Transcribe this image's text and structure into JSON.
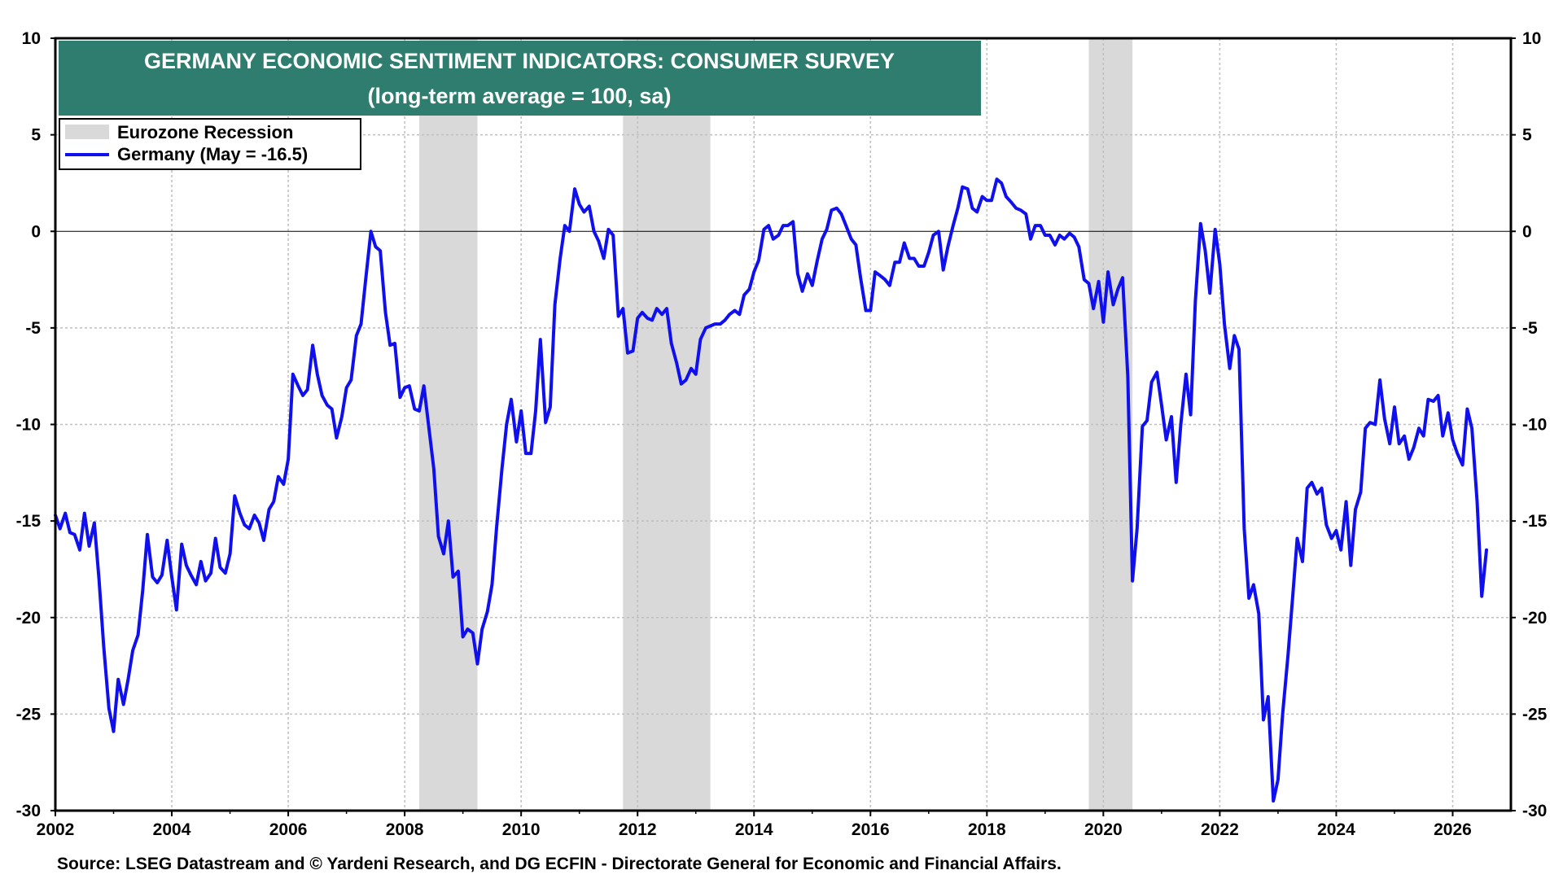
{
  "chart_data": {
    "type": "line",
    "title": "GERMANY ECONOMIC SENTIMENT INDICATORS: CONSUMER SURVEY",
    "subtitle": "(long-term average = 100, sa)",
    "ylim": [
      -30,
      10
    ],
    "xlim": [
      2002,
      2027
    ],
    "yticks": [
      10,
      5,
      0,
      -5,
      -10,
      -15,
      -20,
      -25,
      -30
    ],
    "xticks": [
      2002,
      2004,
      2006,
      2008,
      2010,
      2012,
      2014,
      2016,
      2018,
      2020,
      2022,
      2024,
      2026
    ],
    "grid": true,
    "zero_line": true,
    "legend_position": "top-left",
    "recession_label": "Eurozone Recession",
    "recessions": [
      [
        2008.25,
        2009.25
      ],
      [
        2011.75,
        2013.25
      ],
      [
        2019.75,
        2020.5
      ]
    ],
    "series": [
      {
        "name": "Germany (May = -16.5)",
        "color": "#1010ee",
        "points": [
          [
            2002.0,
            -14.7
          ],
          [
            2002.08,
            -15.4
          ],
          [
            2002.17,
            -14.6
          ],
          [
            2002.25,
            -15.6
          ],
          [
            2002.33,
            -15.7
          ],
          [
            2002.42,
            -16.5
          ],
          [
            2002.5,
            -14.6
          ],
          [
            2002.58,
            -16.3
          ],
          [
            2002.67,
            -15.1
          ],
          [
            2002.75,
            -18.0
          ],
          [
            2002.83,
            -21.5
          ],
          [
            2002.92,
            -24.7
          ],
          [
            2003.0,
            -25.9
          ],
          [
            2003.08,
            -23.2
          ],
          [
            2003.17,
            -24.5
          ],
          [
            2003.25,
            -23.2
          ],
          [
            2003.33,
            -21.7
          ],
          [
            2003.42,
            -20.9
          ],
          [
            2003.5,
            -18.6
          ],
          [
            2003.58,
            -15.7
          ],
          [
            2003.67,
            -17.9
          ],
          [
            2003.75,
            -18.2
          ],
          [
            2003.83,
            -17.8
          ],
          [
            2003.92,
            -16.0
          ],
          [
            2004.0,
            -17.9
          ],
          [
            2004.08,
            -19.6
          ],
          [
            2004.17,
            -16.2
          ],
          [
            2004.25,
            -17.3
          ],
          [
            2004.33,
            -17.8
          ],
          [
            2004.42,
            -18.3
          ],
          [
            2004.5,
            -17.1
          ],
          [
            2004.58,
            -18.1
          ],
          [
            2004.67,
            -17.7
          ],
          [
            2004.75,
            -15.9
          ],
          [
            2004.83,
            -17.4
          ],
          [
            2004.92,
            -17.7
          ],
          [
            2005.0,
            -16.7
          ],
          [
            2005.08,
            -13.7
          ],
          [
            2005.17,
            -14.6
          ],
          [
            2005.25,
            -15.2
          ],
          [
            2005.33,
            -15.4
          ],
          [
            2005.42,
            -14.7
          ],
          [
            2005.5,
            -15.1
          ],
          [
            2005.58,
            -16.0
          ],
          [
            2005.67,
            -14.4
          ],
          [
            2005.75,
            -14.0
          ],
          [
            2005.83,
            -12.7
          ],
          [
            2005.92,
            -13.1
          ],
          [
            2006.0,
            -11.8
          ],
          [
            2006.08,
            -7.4
          ],
          [
            2006.17,
            -8.0
          ],
          [
            2006.25,
            -8.5
          ],
          [
            2006.33,
            -8.2
          ],
          [
            2006.42,
            -5.9
          ],
          [
            2006.5,
            -7.4
          ],
          [
            2006.58,
            -8.5
          ],
          [
            2006.67,
            -9.0
          ],
          [
            2006.75,
            -9.2
          ],
          [
            2006.83,
            -10.7
          ],
          [
            2006.92,
            -9.6
          ],
          [
            2007.0,
            -8.1
          ],
          [
            2007.08,
            -7.7
          ],
          [
            2007.17,
            -5.4
          ],
          [
            2007.25,
            -4.8
          ],
          [
            2007.33,
            -2.5
          ],
          [
            2007.42,
            0.0
          ],
          [
            2007.5,
            -0.8
          ],
          [
            2007.58,
            -1.0
          ],
          [
            2007.67,
            -4.2
          ],
          [
            2007.75,
            -5.9
          ],
          [
            2007.83,
            -5.8
          ],
          [
            2007.92,
            -8.6
          ],
          [
            2008.0,
            -8.1
          ],
          [
            2008.08,
            -8.0
          ],
          [
            2008.17,
            -9.2
          ],
          [
            2008.25,
            -9.3
          ],
          [
            2008.33,
            -8.0
          ],
          [
            2008.42,
            -10.3
          ],
          [
            2008.5,
            -12.3
          ],
          [
            2008.58,
            -15.8
          ],
          [
            2008.67,
            -16.7
          ],
          [
            2008.75,
            -15.0
          ],
          [
            2008.83,
            -17.9
          ],
          [
            2008.92,
            -17.6
          ],
          [
            2009.0,
            -21.0
          ],
          [
            2009.08,
            -20.6
          ],
          [
            2009.17,
            -20.8
          ],
          [
            2009.25,
            -22.4
          ],
          [
            2009.33,
            -20.6
          ],
          [
            2009.42,
            -19.7
          ],
          [
            2009.5,
            -18.3
          ],
          [
            2009.58,
            -15.3
          ],
          [
            2009.67,
            -12.3
          ],
          [
            2009.75,
            -10.0
          ],
          [
            2009.83,
            -8.7
          ],
          [
            2009.92,
            -10.9
          ],
          [
            2010.0,
            -9.3
          ],
          [
            2010.08,
            -11.5
          ],
          [
            2010.17,
            -11.5
          ],
          [
            2010.25,
            -9.3
          ],
          [
            2010.33,
            -5.6
          ],
          [
            2010.42,
            -9.9
          ],
          [
            2010.5,
            -9.1
          ],
          [
            2010.58,
            -3.8
          ],
          [
            2010.67,
            -1.4
          ],
          [
            2010.75,
            0.3
          ],
          [
            2010.83,
            0.0
          ],
          [
            2010.92,
            2.2
          ],
          [
            2011.0,
            1.4
          ],
          [
            2011.08,
            1.0
          ],
          [
            2011.17,
            1.3
          ],
          [
            2011.25,
            0.0
          ],
          [
            2011.33,
            -0.5
          ],
          [
            2011.42,
            -1.4
          ],
          [
            2011.5,
            0.1
          ],
          [
            2011.58,
            -0.2
          ],
          [
            2011.67,
            -4.4
          ],
          [
            2011.75,
            -4.0
          ],
          [
            2011.83,
            -6.3
          ],
          [
            2011.92,
            -6.2
          ],
          [
            2012.0,
            -4.5
          ],
          [
            2012.08,
            -4.2
          ],
          [
            2012.17,
            -4.5
          ],
          [
            2012.25,
            -4.6
          ],
          [
            2012.33,
            -4.0
          ],
          [
            2012.42,
            -4.3
          ],
          [
            2012.5,
            -4.0
          ],
          [
            2012.58,
            -5.8
          ],
          [
            2012.67,
            -6.8
          ],
          [
            2012.75,
            -7.9
          ],
          [
            2012.83,
            -7.7
          ],
          [
            2012.92,
            -7.1
          ],
          [
            2013.0,
            -7.4
          ],
          [
            2013.08,
            -5.6
          ],
          [
            2013.17,
            -5.0
          ],
          [
            2013.25,
            -4.9
          ],
          [
            2013.33,
            -4.8
          ],
          [
            2013.42,
            -4.8
          ],
          [
            2013.5,
            -4.6
          ],
          [
            2013.58,
            -4.3
          ],
          [
            2013.67,
            -4.1
          ],
          [
            2013.75,
            -4.3
          ],
          [
            2013.83,
            -3.3
          ],
          [
            2013.92,
            -3.0
          ],
          [
            2014.0,
            -2.1
          ],
          [
            2014.08,
            -1.5
          ],
          [
            2014.17,
            0.1
          ],
          [
            2014.25,
            0.3
          ],
          [
            2014.33,
            -0.4
          ],
          [
            2014.42,
            -0.2
          ],
          [
            2014.5,
            0.3
          ],
          [
            2014.58,
            0.3
          ],
          [
            2014.67,
            0.5
          ],
          [
            2014.75,
            -2.2
          ],
          [
            2014.83,
            -3.1
          ],
          [
            2014.92,
            -2.2
          ],
          [
            2015.0,
            -2.8
          ],
          [
            2015.08,
            -1.6
          ],
          [
            2015.17,
            -0.4
          ],
          [
            2015.25,
            0.1
          ],
          [
            2015.33,
            1.1
          ],
          [
            2015.42,
            1.2
          ],
          [
            2015.5,
            0.9
          ],
          [
            2015.58,
            0.3
          ],
          [
            2015.67,
            -0.4
          ],
          [
            2015.75,
            -0.7
          ],
          [
            2015.83,
            -2.4
          ],
          [
            2015.92,
            -4.1
          ],
          [
            2016.0,
            -4.1
          ],
          [
            2016.08,
            -2.1
          ],
          [
            2016.17,
            -2.3
          ],
          [
            2016.25,
            -2.5
          ],
          [
            2016.33,
            -2.8
          ],
          [
            2016.42,
            -1.6
          ],
          [
            2016.5,
            -1.6
          ],
          [
            2016.58,
            -0.6
          ],
          [
            2016.67,
            -1.4
          ],
          [
            2016.75,
            -1.4
          ],
          [
            2016.83,
            -1.8
          ],
          [
            2016.92,
            -1.8
          ],
          [
            2017.0,
            -1.1
          ],
          [
            2017.08,
            -0.2
          ],
          [
            2017.17,
            0.0
          ],
          [
            2017.25,
            -2.0
          ],
          [
            2017.33,
            -0.8
          ],
          [
            2017.42,
            0.3
          ],
          [
            2017.5,
            1.2
          ],
          [
            2017.58,
            2.3
          ],
          [
            2017.67,
            2.2
          ],
          [
            2017.75,
            1.2
          ],
          [
            2017.83,
            1.0
          ],
          [
            2017.92,
            1.8
          ],
          [
            2018.0,
            1.6
          ],
          [
            2018.08,
            1.6
          ],
          [
            2018.17,
            2.7
          ],
          [
            2018.25,
            2.5
          ],
          [
            2018.33,
            1.8
          ],
          [
            2018.42,
            1.5
          ],
          [
            2018.5,
            1.2
          ],
          [
            2018.58,
            1.1
          ],
          [
            2018.67,
            0.9
          ],
          [
            2018.75,
            -0.4
          ],
          [
            2018.83,
            0.3
          ],
          [
            2018.92,
            0.3
          ],
          [
            2019.0,
            -0.2
          ],
          [
            2019.08,
            -0.2
          ],
          [
            2019.17,
            -0.7
          ],
          [
            2019.25,
            -0.2
          ],
          [
            2019.33,
            -0.4
          ],
          [
            2019.42,
            -0.1
          ],
          [
            2019.5,
            -0.3
          ],
          [
            2019.58,
            -0.8
          ],
          [
            2019.67,
            -2.5
          ],
          [
            2019.75,
            -2.7
          ],
          [
            2019.83,
            -4.0
          ],
          [
            2019.92,
            -2.6
          ],
          [
            2020.0,
            -4.7
          ],
          [
            2020.08,
            -2.1
          ],
          [
            2020.17,
            -3.8
          ],
          [
            2020.25,
            -3.0
          ],
          [
            2020.33,
            -2.4
          ],
          [
            2020.42,
            -7.5
          ],
          [
            2020.5,
            -18.1
          ],
          [
            2020.58,
            -15.4
          ],
          [
            2020.67,
            -10.1
          ],
          [
            2020.75,
            -9.8
          ],
          [
            2020.83,
            -7.8
          ],
          [
            2020.92,
            -7.3
          ],
          [
            2021.0,
            -9.0
          ],
          [
            2021.08,
            -10.8
          ],
          [
            2021.17,
            -9.6
          ],
          [
            2021.25,
            -13.0
          ],
          [
            2021.33,
            -10.0
          ],
          [
            2021.42,
            -7.4
          ],
          [
            2021.5,
            -9.5
          ],
          [
            2021.58,
            -3.6
          ],
          [
            2021.67,
            0.4
          ],
          [
            2021.75,
            -1.0
          ],
          [
            2021.83,
            -3.2
          ],
          [
            2021.92,
            0.1
          ],
          [
            2022.0,
            -1.7
          ],
          [
            2022.08,
            -4.8
          ],
          [
            2022.17,
            -7.1
          ],
          [
            2022.25,
            -5.4
          ],
          [
            2022.33,
            -6.1
          ],
          [
            2022.42,
            -15.4
          ],
          [
            2022.5,
            -19.0
          ],
          [
            2022.58,
            -18.3
          ],
          [
            2022.67,
            -19.8
          ],
          [
            2022.75,
            -25.3
          ],
          [
            2022.83,
            -24.1
          ],
          [
            2022.92,
            -29.5
          ],
          [
            2023.0,
            -28.4
          ],
          [
            2023.08,
            -25.0
          ],
          [
            2023.17,
            -22.0
          ],
          [
            2023.25,
            -19.0
          ],
          [
            2023.33,
            -15.9
          ],
          [
            2023.42,
            -17.1
          ],
          [
            2023.5,
            -13.3
          ],
          [
            2023.58,
            -13.0
          ],
          [
            2023.67,
            -13.6
          ],
          [
            2023.75,
            -13.3
          ],
          [
            2023.83,
            -15.2
          ],
          [
            2023.92,
            -15.9
          ],
          [
            2024.0,
            -15.5
          ],
          [
            2024.08,
            -16.5
          ],
          [
            2024.17,
            -14.0
          ],
          [
            2024.25,
            -17.3
          ],
          [
            2024.33,
            -14.4
          ],
          [
            2024.42,
            -13.5
          ],
          [
            2024.5,
            -10.2
          ],
          [
            2024.58,
            -9.9
          ],
          [
            2024.67,
            -10.0
          ],
          [
            2024.75,
            -7.7
          ],
          [
            2024.83,
            -9.7
          ],
          [
            2024.92,
            -11.0
          ],
          [
            2025.0,
            -9.1
          ],
          [
            2025.08,
            -11.0
          ],
          [
            2025.17,
            -10.6
          ],
          [
            2025.25,
            -11.8
          ],
          [
            2025.33,
            -11.2
          ],
          [
            2025.42,
            -10.2
          ],
          [
            2025.5,
            -10.6
          ],
          [
            2025.58,
            -8.7
          ],
          [
            2025.67,
            -8.8
          ],
          [
            2025.75,
            -8.5
          ],
          [
            2025.83,
            -10.6
          ],
          [
            2025.92,
            -9.4
          ],
          [
            2026.0,
            -10.8
          ],
          [
            2026.08,
            -11.5
          ],
          [
            2026.17,
            -12.1
          ],
          [
            2026.25,
            -9.2
          ],
          [
            2026.33,
            -10.2
          ],
          [
            2026.42,
            -14.0
          ],
          [
            2026.5,
            -18.9
          ],
          [
            2026.58,
            -16.5
          ]
        ]
      }
    ],
    "source": "Source: LSEG Datastream and © Yardeni Research, and DG ECFIN - Directorate General for Economic and Financial Affairs.",
    "colors": {
      "title_bg": "#2e7d6e",
      "line": "#1010ee",
      "recession": "#d9d9d9",
      "grid": "#bfbfbf"
    }
  }
}
